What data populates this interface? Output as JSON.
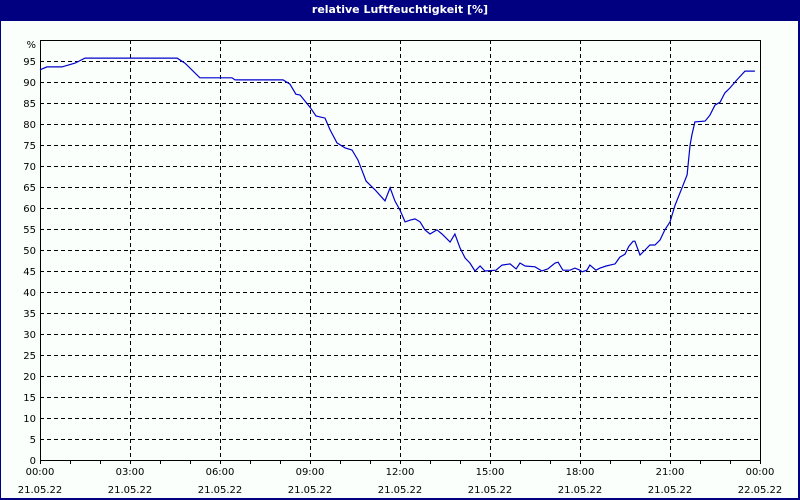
{
  "title": "relative Luftfeuchtigkeit [%]",
  "colors": {
    "header_bg": "#000080",
    "plot_bg": "#fbfffb",
    "line": "#0000cc",
    "grid": "#000000"
  },
  "chart_data": {
    "type": "line",
    "title": "relative Luftfeuchtigkeit [%]",
    "xlabel": "",
    "ylabel": "%",
    "ylim": [
      0,
      100
    ],
    "xlim_hours": [
      0,
      24
    ],
    "grid": true,
    "y_ticks": [
      0,
      5,
      10,
      15,
      20,
      25,
      30,
      35,
      40,
      45,
      50,
      55,
      60,
      65,
      70,
      75,
      80,
      85,
      90,
      95
    ],
    "y_unit_label": "%",
    "x_ticks": [
      {
        "time": "00:00",
        "date": "21.05.22",
        "h": 0
      },
      {
        "time": "03:00",
        "date": "21.05.22",
        "h": 3
      },
      {
        "time": "06:00",
        "date": "21.05.22",
        "h": 6
      },
      {
        "time": "09:00",
        "date": "21.05.22",
        "h": 9
      },
      {
        "time": "12:00",
        "date": "21.05.22",
        "h": 12
      },
      {
        "time": "15:00",
        "date": "21.05.22",
        "h": 15
      },
      {
        "time": "18:00",
        "date": "21.05.22",
        "h": 18
      },
      {
        "time": "21:00",
        "date": "21.05.22",
        "h": 21
      },
      {
        "time": "00:00",
        "date": "22.05.22",
        "h": 24
      }
    ],
    "series": [
      {
        "name": "relative Luftfeuchtigkeit",
        "points": [
          [
            0.0,
            92.9
          ],
          [
            0.23,
            93.6
          ],
          [
            0.73,
            93.6
          ],
          [
            1.17,
            94.5
          ],
          [
            1.5,
            95.7
          ],
          [
            4.57,
            95.7
          ],
          [
            4.83,
            94.5
          ],
          [
            5.33,
            91.0
          ],
          [
            6.4,
            91.0
          ],
          [
            6.5,
            90.5
          ],
          [
            8.1,
            90.5
          ],
          [
            8.33,
            89.5
          ],
          [
            8.53,
            87.1
          ],
          [
            8.67,
            86.9
          ],
          [
            9.0,
            84.0
          ],
          [
            9.2,
            81.9
          ],
          [
            9.5,
            81.4
          ],
          [
            9.67,
            78.6
          ],
          [
            9.9,
            75.5
          ],
          [
            10.17,
            74.3
          ],
          [
            10.4,
            73.8
          ],
          [
            10.6,
            71.4
          ],
          [
            10.73,
            69.0
          ],
          [
            10.87,
            66.4
          ],
          [
            11.0,
            65.5
          ],
          [
            11.17,
            64.3
          ],
          [
            11.5,
            61.7
          ],
          [
            11.67,
            64.8
          ],
          [
            11.83,
            61.7
          ],
          [
            12.0,
            59.5
          ],
          [
            12.17,
            56.7
          ],
          [
            12.33,
            57.1
          ],
          [
            12.5,
            57.4
          ],
          [
            12.67,
            56.7
          ],
          [
            12.83,
            54.8
          ],
          [
            13.0,
            53.8
          ],
          [
            13.23,
            54.8
          ],
          [
            13.4,
            53.8
          ],
          [
            13.67,
            51.9
          ],
          [
            13.83,
            53.8
          ],
          [
            14.0,
            50.5
          ],
          [
            14.17,
            48.1
          ],
          [
            14.33,
            46.9
          ],
          [
            14.5,
            45.0
          ],
          [
            14.67,
            46.2
          ],
          [
            14.83,
            45.0
          ],
          [
            15.2,
            45.2
          ],
          [
            15.4,
            46.4
          ],
          [
            15.67,
            46.7
          ],
          [
            15.87,
            45.5
          ],
          [
            16.0,
            46.9
          ],
          [
            16.17,
            46.2
          ],
          [
            16.5,
            46.0
          ],
          [
            16.73,
            45.0
          ],
          [
            16.93,
            45.5
          ],
          [
            17.17,
            46.9
          ],
          [
            17.27,
            47.1
          ],
          [
            17.43,
            45.2
          ],
          [
            17.67,
            45.2
          ],
          [
            17.83,
            45.7
          ],
          [
            18.0,
            45.2
          ],
          [
            18.07,
            44.8
          ],
          [
            18.23,
            45.2
          ],
          [
            18.33,
            46.4
          ],
          [
            18.53,
            45.2
          ],
          [
            18.67,
            45.7
          ],
          [
            18.87,
            46.2
          ],
          [
            19.17,
            46.7
          ],
          [
            19.33,
            48.3
          ],
          [
            19.5,
            49.0
          ],
          [
            19.63,
            50.9
          ],
          [
            19.77,
            52.1
          ],
          [
            19.83,
            52.1
          ],
          [
            20.0,
            48.8
          ],
          [
            20.17,
            50.0
          ],
          [
            20.33,
            51.2
          ],
          [
            20.5,
            51.2
          ],
          [
            20.67,
            52.4
          ],
          [
            20.83,
            54.8
          ],
          [
            21.0,
            56.7
          ],
          [
            21.17,
            60.7
          ],
          [
            21.4,
            64.8
          ],
          [
            21.57,
            67.9
          ],
          [
            21.67,
            75.0
          ],
          [
            21.73,
            77.4
          ],
          [
            21.83,
            80.5
          ],
          [
            22.17,
            80.7
          ],
          [
            22.33,
            82.1
          ],
          [
            22.5,
            84.5
          ],
          [
            22.67,
            85.2
          ],
          [
            22.83,
            87.4
          ],
          [
            23.0,
            88.6
          ],
          [
            23.23,
            90.5
          ],
          [
            23.5,
            92.6
          ],
          [
            23.83,
            92.6
          ]
        ]
      }
    ]
  }
}
